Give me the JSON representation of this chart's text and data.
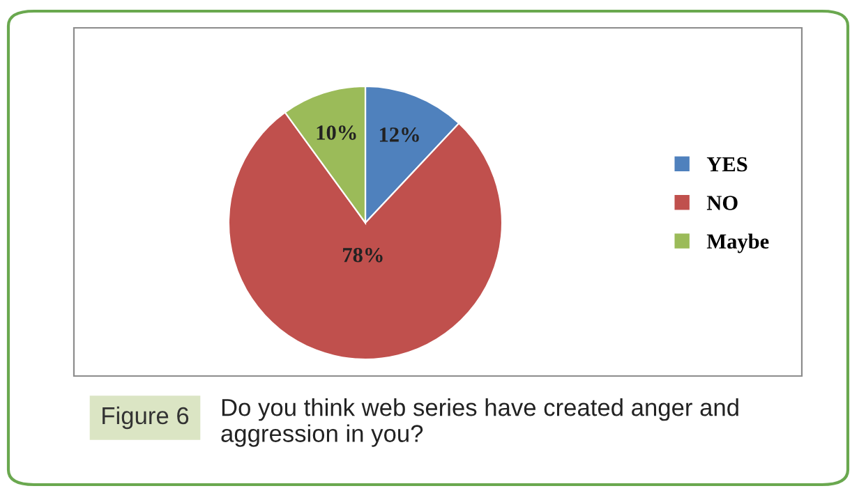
{
  "chart_data": {
    "type": "pie",
    "categories": [
      "YES",
      "NO",
      "Maybe"
    ],
    "values": [
      12,
      78,
      10
    ],
    "colors": [
      "#4f81bd",
      "#c0504d",
      "#9bbb59"
    ],
    "value_labels": [
      "12%",
      "78%",
      "10%"
    ],
    "legend": "right",
    "annotations": [
      "Figure 6",
      "Do you think web series have created anger and aggression in you?"
    ]
  }
}
